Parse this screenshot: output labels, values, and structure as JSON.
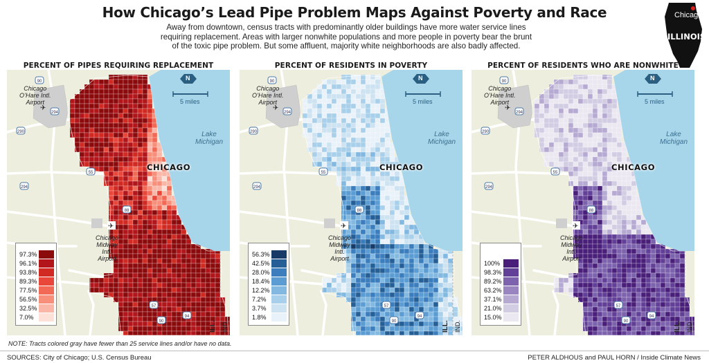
{
  "header": {
    "title": "How Chicago’s Lead Pipe Problem Maps Against Poverty and Race",
    "subtitle_lines": [
      "Away from downtown, census tracts with predominantly older buildings have more water service lines",
      "requiring replacement. Areas with larger nonwhite populations and more people in poverty bear the brunt",
      "of the toxic pipe problem. But some affluent, majority white neighborhoods are also badly affected."
    ]
  },
  "inset": {
    "city_label": "Chicago",
    "state_label": "ILLINOIS"
  },
  "map_labels": {
    "ohare": [
      "Chicago",
      "O’Hare Intl.",
      "Airport"
    ],
    "midway": [
      "Chicago",
      "Midway",
      "Intl.",
      "Airport"
    ],
    "lake": [
      "Lake",
      "Michigan"
    ],
    "city": "CHICAGO",
    "scale": "5 miles",
    "north": "N",
    "state_il": "ILL.",
    "state_in": "IND.",
    "highways": [
      "90",
      "294",
      "290",
      "55",
      "88",
      "294",
      "57",
      "94",
      "90"
    ]
  },
  "panels": [
    {
      "title": "PERCENT OF PIPES REQUIRING REPLACEMENT",
      "legend": [
        "97.3%",
        "96.1%",
        "93.8%",
        "89.3%",
        "77.5%",
        "56.5%",
        "32.5%",
        "7.0%"
      ],
      "colors": [
        "#8b0a0c",
        "#b2161a",
        "#d12a22",
        "#e8473a",
        "#f26a55",
        "#f78f7b",
        "#fab7a8",
        "#fde0d8"
      ]
    },
    {
      "title": "PERCENT OF RESIDENTS IN POVERTY",
      "legend": [
        "56.3%",
        "42.5%",
        "28.0%",
        "18.4%",
        "12.2%",
        "7.2%",
        "3.7%",
        "1.8%"
      ],
      "colors": [
        "#173a66",
        "#265e96",
        "#3b7dbd",
        "#5b9dd2",
        "#83b9e0",
        "#a9d0ea",
        "#cde3f2",
        "#e9f2f9"
      ]
    },
    {
      "title": "PERCENT OF RESIDENTS WHO ARE NONWHITE",
      "legend": [
        "100%",
        "98.3%",
        "89.2%",
        "63.2%",
        "37.1%",
        "21.0%",
        "15.0%"
      ],
      "colors": [
        "#4a1f7a",
        "#634098",
        "#7d63ad",
        "#9986c1",
        "#b6aad3",
        "#d3cde4",
        "#ebe8f2"
      ]
    }
  ],
  "footer": {
    "note": "NOTE: Tracts colored gray have fewer than 25 service lines and/or have no data.",
    "sources": "SOURCES: City of Chicago; U.S. Census Bureau",
    "credit": "PETER ALDHOUS and PAUL HORN / Inside Climate News"
  },
  "colors": {
    "lake": "#a7d6eb",
    "land": "#eeeede",
    "road": "#ffffff",
    "nodata": "#cfcfcf"
  }
}
